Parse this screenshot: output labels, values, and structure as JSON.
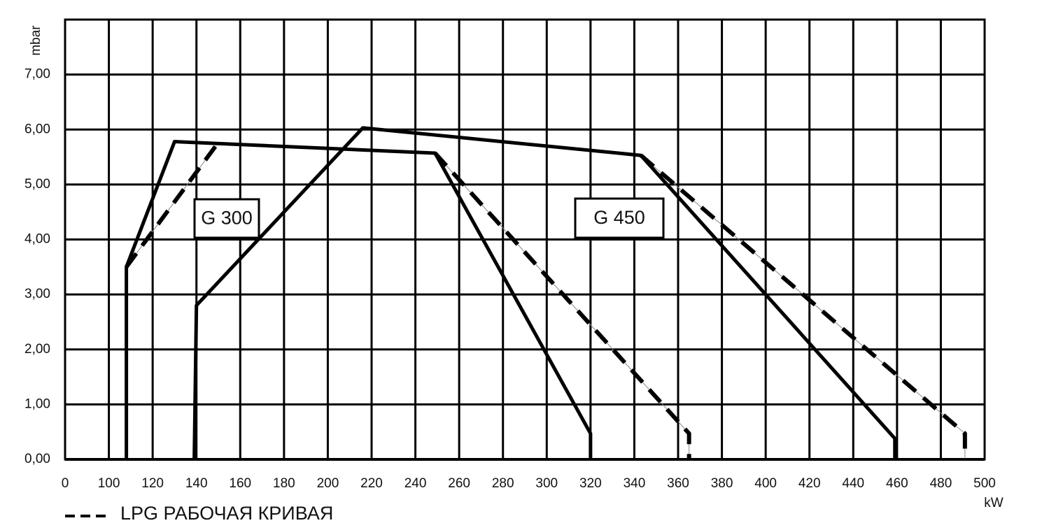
{
  "chart_data": {
    "type": "line",
    "y_label": "mbar",
    "x_label": "kW",
    "xticks": [
      0,
      100,
      120,
      140,
      160,
      180,
      200,
      220,
      240,
      260,
      280,
      300,
      320,
      340,
      360,
      380,
      400,
      420,
      440,
      460,
      480,
      500
    ],
    "xlim": [
      0,
      500
    ],
    "ylim": [
      0,
      8
    ],
    "yticks": [
      {
        "value": 0,
        "label": "0,00"
      },
      {
        "value": 1,
        "label": "1,00"
      },
      {
        "value": 2,
        "label": "2,00"
      },
      {
        "value": 3,
        "label": "3,00"
      },
      {
        "value": 4,
        "label": "4,00"
      },
      {
        "value": 5,
        "label": "5,00"
      },
      {
        "value": 6,
        "label": "6,00"
      },
      {
        "value": 7,
        "label": "7,00"
      }
    ],
    "grid": true,
    "legend_label": "LPG РАБОЧАЯ КРИВАЯ",
    "annotations": [
      "G 300",
      "G 450"
    ],
    "series": [
      {
        "color": "#000000",
        "dashed": false,
        "x": [
          108,
          108,
          130,
          249,
          320,
          320
        ],
        "values": [
          0,
          3.5,
          5.78,
          5.57,
          0.47,
          0
        ]
      },
      {
        "color": "#000000",
        "dashed": true,
        "x": [
          108,
          149,
          null,
          249,
          365,
          365
        ],
        "values": [
          3.5,
          5.71,
          null,
          5.57,
          0.47,
          0
        ]
      },
      {
        "color": "#000000",
        "dashed": false,
        "x": [
          139,
          140,
          216,
          343,
          459,
          459
        ],
        "values": [
          0,
          2.8,
          6.03,
          5.53,
          0.38,
          0
        ]
      },
      {
        "color": "#000000",
        "dashed": true,
        "x": [
          343,
          491,
          491
        ],
        "values": [
          5.53,
          0.47,
          0
        ]
      }
    ]
  }
}
